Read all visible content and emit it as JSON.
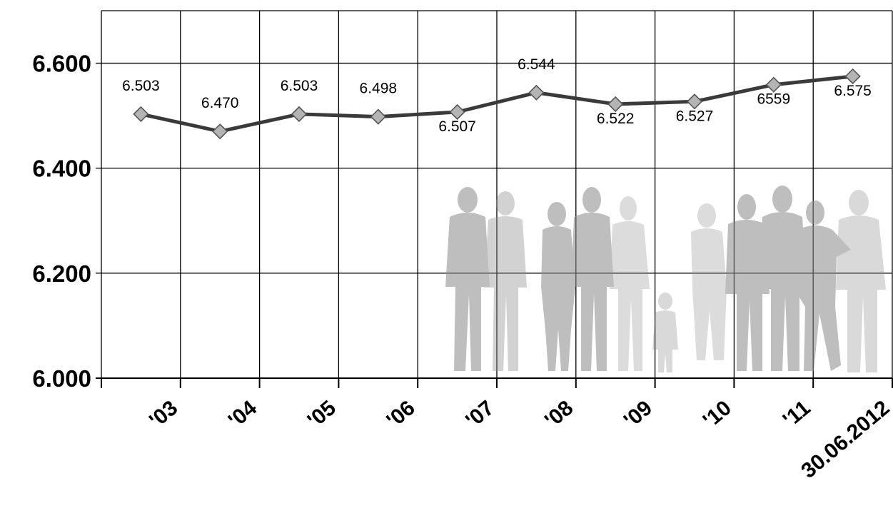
{
  "chart_data": {
    "type": "line",
    "categories": [
      "'03",
      "'04",
      "'05",
      "'06",
      "'07",
      "'08",
      "'09",
      "'10",
      "'11",
      "30.06.2012"
    ],
    "series": [
      {
        "values": [
          6503,
          6470,
          6503,
          6498,
          6507,
          6544,
          6522,
          6527,
          6559,
          6575
        ],
        "data_labels": [
          "6.503",
          "6.470",
          "6.503",
          "6.498",
          "6.507",
          "6.544",
          "6.522",
          "6.527",
          "6559",
          "6.575"
        ],
        "color": "#3a3a3a",
        "marker": "diamond",
        "marker_color": "#b4b4b4"
      }
    ],
    "ylim": [
      6000,
      6700
    ],
    "yticks": [
      6000,
      6200,
      6400,
      6600
    ],
    "ytick_labels": [
      "6.000",
      "6.200",
      "6.400",
      "6.600"
    ],
    "grid": true,
    "background_image": "people-silhouettes"
  }
}
